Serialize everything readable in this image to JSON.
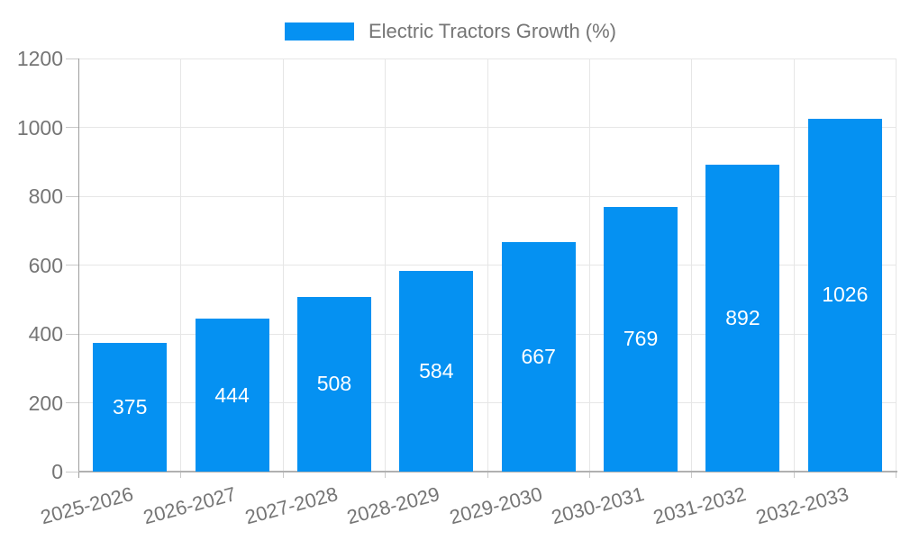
{
  "chart_data": {
    "type": "bar",
    "series_name": "Electric Tractors Growth (%)",
    "categories": [
      "2025-2026",
      "2026-2027",
      "2027-2028",
      "2028-2029",
      "2029-2030",
      "2030-2031",
      "2031-2032",
      "2032-2033"
    ],
    "values": [
      375,
      444,
      508,
      584,
      667,
      769,
      892,
      1026
    ],
    "bar_value_labels": [
      "375",
      "444",
      "508",
      "584",
      "667",
      "769",
      "892",
      "1026"
    ],
    "yticks": [
      0,
      200,
      400,
      600,
      800,
      1000,
      1200
    ],
    "ylim": [
      0,
      1200
    ],
    "xlabel": "",
    "ylabel": "",
    "grid": true,
    "legend_position": "top-center",
    "x_tick_rotation_deg": -15,
    "colors": {
      "bar": "#0591F2",
      "bar_label_text": "#ffffff",
      "axis_text": "#757575",
      "gridline": "#e6e6e6",
      "tick": "#c9c9c9",
      "y_axis_line": "#9e9e9e",
      "baseline": "#b0b0b0"
    }
  }
}
